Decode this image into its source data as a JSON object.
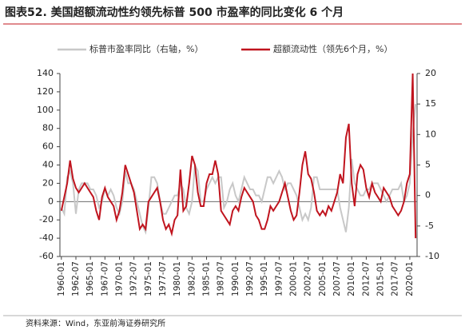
{
  "chart_data": {
    "type": "line",
    "title": "图表52.  美国超额流动性约领先标普 500 市盈率的同比变化 6 个月",
    "source": "资料来源：Wind，东亚前海证券研究所",
    "categories": [
      "1960-01",
      null,
      null,
      null,
      null,
      "1962-07",
      null,
      null,
      null,
      null,
      "1965-01",
      null,
      null,
      null,
      null,
      "1967-07",
      null,
      null,
      null,
      null,
      "1970-01",
      null,
      null,
      null,
      null,
      "1972-07",
      null,
      null,
      null,
      null,
      "1975-01",
      null,
      null,
      null,
      null,
      "1977-07",
      null,
      null,
      null,
      null,
      "1980-01",
      null,
      null,
      null,
      null,
      "1982-07",
      null,
      null,
      null,
      null,
      "1985-01",
      null,
      null,
      null,
      null,
      "1987-07",
      null,
      null,
      null,
      null,
      "1990-01",
      null,
      null,
      null,
      null,
      "1992-07",
      null,
      null,
      null,
      null,
      "1995-01",
      null,
      null,
      null,
      null,
      "1997-07",
      null,
      null,
      null,
      null,
      "2000-01",
      null,
      null,
      null,
      null,
      "2002-07",
      null,
      null,
      null,
      null,
      "2005-01",
      null,
      null,
      null,
      null,
      "2007-07",
      null,
      null,
      null,
      null,
      "2010-01",
      null,
      null,
      null,
      null,
      "2012-07",
      null,
      null,
      null,
      null,
      "2015-01",
      null,
      null,
      null,
      null,
      "2017-07",
      null,
      null,
      null,
      null,
      "2020-01",
      null,
      null
    ],
    "series": [
      {
        "name": "标普市盈率同比（右轴，%）",
        "color": "#c8c8c8",
        "axis": "y2",
        "values": [
          -2,
          -3,
          3,
          4,
          2,
          -3,
          1,
          2,
          2,
          2,
          1,
          1,
          0,
          -2,
          -1,
          1,
          0,
          1,
          0,
          -2,
          -3,
          -1,
          4,
          2,
          2,
          1,
          -1,
          -3,
          -5,
          -6,
          -2,
          3,
          3,
          2,
          -1,
          -3,
          -3,
          -2,
          -1,
          0,
          0,
          2,
          1,
          -2,
          -3,
          -1,
          5,
          4,
          -1,
          -1,
          1,
          2,
          3,
          2,
          3,
          3,
          -2,
          -1,
          1,
          2,
          0,
          -1,
          1,
          3,
          2,
          1,
          1,
          0,
          0,
          -1,
          1,
          3,
          3,
          2,
          3,
          4,
          3,
          1,
          2,
          2,
          1,
          0,
          -2,
          -4,
          -3,
          -4,
          -2,
          3,
          3,
          1,
          1,
          1,
          1,
          1,
          1,
          1,
          -2,
          -4,
          -6,
          -2,
          6,
          2,
          1,
          0,
          0,
          1,
          1,
          2,
          2,
          2,
          1,
          0,
          -1,
          0,
          1,
          1,
          1,
          2,
          -1,
          0,
          2,
          10,
          15
        ]
      },
      {
        "name": "超额流动性（领先6个月，%）",
        "color": "#c0141e",
        "values": [
          -10,
          5,
          20,
          45,
          25,
          15,
          10,
          15,
          20,
          15,
          10,
          5,
          -10,
          -20,
          5,
          15,
          5,
          0,
          -5,
          -20,
          -10,
          10,
          40,
          30,
          20,
          10,
          -10,
          -30,
          -25,
          -30,
          0,
          5,
          10,
          15,
          0,
          -20,
          -30,
          -25,
          -35,
          -20,
          -15,
          35,
          -10,
          -5,
          20,
          50,
          40,
          10,
          -5,
          -5,
          20,
          30,
          30,
          45,
          30,
          -10,
          -15,
          -20,
          -25,
          -10,
          -5,
          -10,
          5,
          15,
          10,
          5,
          0,
          -15,
          -20,
          -30,
          -30,
          -20,
          -5,
          -10,
          -5,
          0,
          10,
          20,
          5,
          -10,
          -20,
          -15,
          10,
          40,
          55,
          30,
          25,
          10,
          -10,
          -15,
          -10,
          -15,
          -5,
          -10,
          0,
          10,
          30,
          20,
          70,
          85,
          20,
          -5,
          30,
          40,
          35,
          15,
          5,
          20,
          10,
          5,
          0,
          15,
          10,
          5,
          -5,
          -10,
          -15,
          -10,
          0,
          20,
          30,
          140,
          -40
        ]
      }
    ],
    "ylim": [
      -60,
      140
    ],
    "yticks": [
      -60,
      -40,
      -20,
      0,
      20,
      40,
      60,
      80,
      100,
      120,
      140
    ],
    "y2lim": [
      -10,
      20
    ],
    "y2ticks": [
      -10,
      -5,
      0,
      5,
      10,
      15,
      20
    ],
    "legend": "top"
  }
}
